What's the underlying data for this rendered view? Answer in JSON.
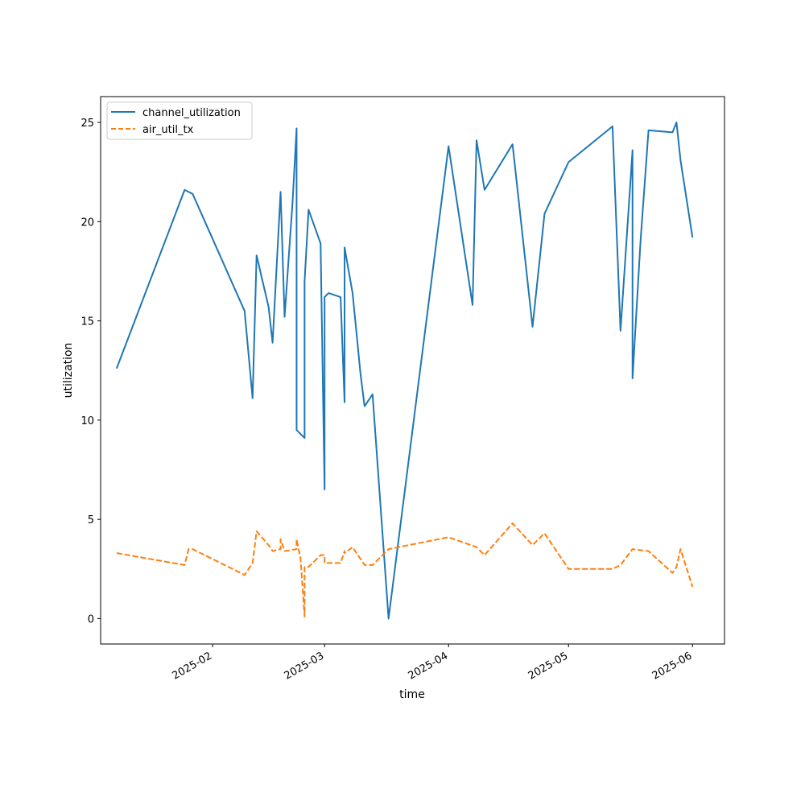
{
  "chart_data": {
    "type": "line",
    "xlabel": "time",
    "ylabel": "utilization",
    "title": "",
    "x_axis": {
      "type": "date",
      "range": [
        "2025-01-04",
        "2025-06-09"
      ],
      "ticks": [
        "2025-02-01",
        "2025-03-01",
        "2025-04-01",
        "2025-05-01",
        "2025-06-01"
      ],
      "tick_labels": [
        "2025-02",
        "2025-03",
        "2025-04",
        "2025-05",
        "2025-06"
      ]
    },
    "y_axis": {
      "range": [
        -1.28,
        26.3
      ],
      "ticks": [
        0,
        5,
        10,
        15,
        20,
        25
      ],
      "tick_labels": [
        "0",
        "5",
        "10",
        "15",
        "20",
        "25"
      ]
    },
    "grid": false,
    "legend_position": "top-left",
    "series": [
      {
        "name": "channel_utilization",
        "color": "#1f77b4",
        "style": "solid",
        "points": [
          [
            "2025-01-08",
            12.6
          ],
          [
            "2025-01-25",
            21.6
          ],
          [
            "2025-01-26",
            21.5
          ],
          [
            "2025-01-27",
            21.4
          ],
          [
            "2025-02-09",
            15.5
          ],
          [
            "2025-02-11",
            11.1
          ],
          [
            "2025-02-12",
            18.3
          ],
          [
            "2025-02-15",
            15.7
          ],
          [
            "2025-02-16",
            13.9
          ],
          [
            "2025-02-18",
            21.5
          ],
          [
            "2025-02-19",
            15.2
          ],
          [
            "2025-02-21",
            21.0
          ],
          [
            "2025-02-22",
            24.7
          ],
          [
            "2025-02-22",
            9.5
          ],
          [
            "2025-02-24",
            9.1
          ],
          [
            "2025-02-24",
            17.0
          ],
          [
            "2025-02-25",
            20.6
          ],
          [
            "2025-02-28",
            18.9
          ],
          [
            "2025-03-01",
            6.5
          ],
          [
            "2025-03-01",
            16.2
          ],
          [
            "2025-03-02",
            16.4
          ],
          [
            "2025-03-05",
            16.2
          ],
          [
            "2025-03-06",
            10.9
          ],
          [
            "2025-03-06",
            18.7
          ],
          [
            "2025-03-08",
            16.4
          ],
          [
            "2025-03-10",
            12.3
          ],
          [
            "2025-03-11",
            10.7
          ],
          [
            "2025-03-13",
            11.3
          ],
          [
            "2025-03-17",
            0.0
          ],
          [
            "2025-04-01",
            23.8
          ],
          [
            "2025-04-07",
            15.8
          ],
          [
            "2025-04-08",
            24.1
          ],
          [
            "2025-04-10",
            21.6
          ],
          [
            "2025-04-17",
            23.9
          ],
          [
            "2025-04-22",
            14.7
          ],
          [
            "2025-04-25",
            20.4
          ],
          [
            "2025-05-01",
            23.0
          ],
          [
            "2025-05-12",
            24.8
          ],
          [
            "2025-05-14",
            14.5
          ],
          [
            "2025-05-17",
            23.6
          ],
          [
            "2025-05-17",
            12.1
          ],
          [
            "2025-05-19",
            19.0
          ],
          [
            "2025-05-21",
            24.6
          ],
          [
            "2025-05-27",
            24.5
          ],
          [
            "2025-05-28",
            25.0
          ],
          [
            "2025-05-29",
            23.1
          ],
          [
            "2025-06-01",
            19.2
          ]
        ]
      },
      {
        "name": "air_util_tx",
        "color": "#ff7f0e",
        "style": "dashed",
        "points": [
          [
            "2025-01-08",
            3.3
          ],
          [
            "2025-01-25",
            2.7
          ],
          [
            "2025-01-26",
            3.5
          ],
          [
            "2025-01-27",
            3.5
          ],
          [
            "2025-02-09",
            2.2
          ],
          [
            "2025-02-11",
            2.8
          ],
          [
            "2025-02-12",
            4.4
          ],
          [
            "2025-02-15",
            3.7
          ],
          [
            "2025-02-16",
            3.4
          ],
          [
            "2025-02-18",
            3.5
          ],
          [
            "2025-02-18",
            4.0
          ],
          [
            "2025-02-19",
            3.4
          ],
          [
            "2025-02-22",
            3.5
          ],
          [
            "2025-02-22",
            4.0
          ],
          [
            "2025-02-23",
            3.0
          ],
          [
            "2025-02-24",
            0.1
          ],
          [
            "2025-02-24",
            2.6
          ],
          [
            "2025-02-25",
            2.6
          ],
          [
            "2025-02-28",
            3.2
          ],
          [
            "2025-03-01",
            3.2
          ],
          [
            "2025-03-01",
            2.8
          ],
          [
            "2025-03-05",
            2.8
          ],
          [
            "2025-03-06",
            3.4
          ],
          [
            "2025-03-06",
            3.3
          ],
          [
            "2025-03-08",
            3.6
          ],
          [
            "2025-03-11",
            2.7
          ],
          [
            "2025-03-13",
            2.7
          ],
          [
            "2025-03-17",
            3.5
          ],
          [
            "2025-04-01",
            4.1
          ],
          [
            "2025-04-08",
            3.6
          ],
          [
            "2025-04-10",
            3.2
          ],
          [
            "2025-04-17",
            4.8
          ],
          [
            "2025-04-22",
            3.7
          ],
          [
            "2025-04-25",
            4.3
          ],
          [
            "2025-05-01",
            2.5
          ],
          [
            "2025-05-12",
            2.5
          ],
          [
            "2025-05-14",
            2.7
          ],
          [
            "2025-05-17",
            3.5
          ],
          [
            "2025-05-21",
            3.4
          ],
          [
            "2025-05-27",
            2.3
          ],
          [
            "2025-05-28",
            2.6
          ],
          [
            "2025-05-29",
            3.5
          ],
          [
            "2025-06-01",
            1.6
          ]
        ]
      }
    ]
  }
}
